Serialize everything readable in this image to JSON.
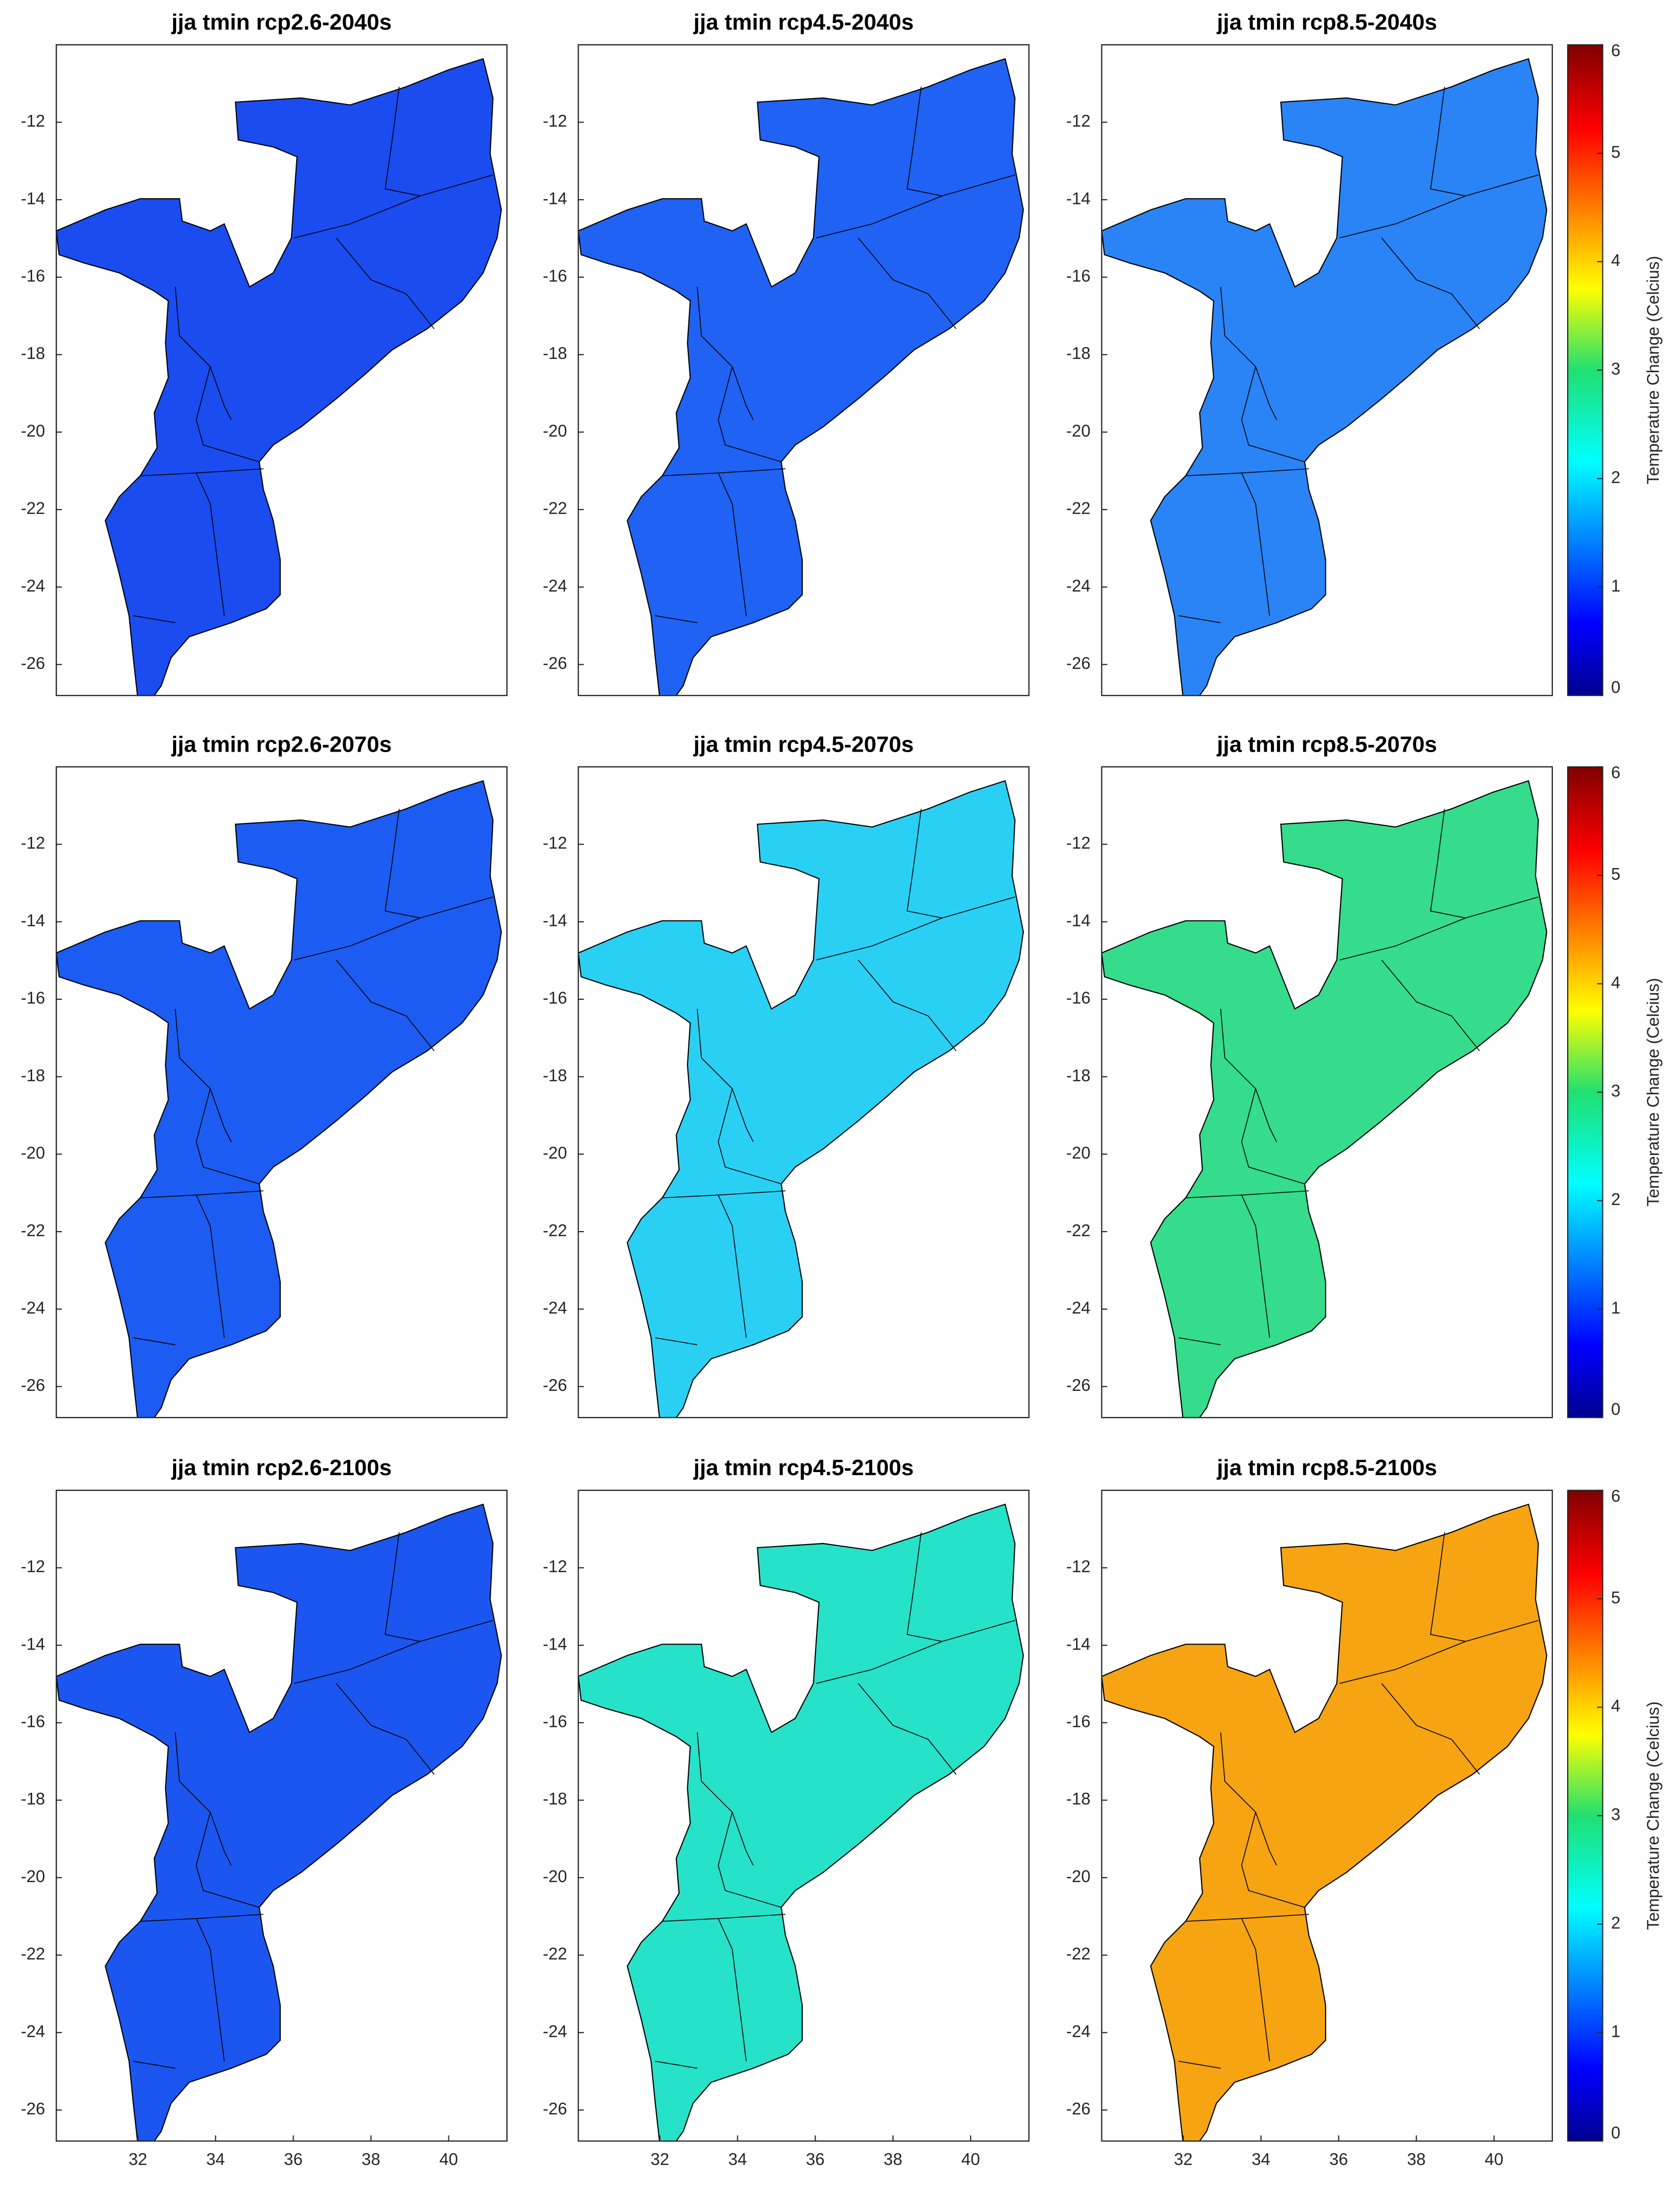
{
  "panels": [
    {
      "title": "jja tmin rcp2.6-2040s",
      "color": "#1a4cf0"
    },
    {
      "title": "jja tmin rcp4.5-2040s",
      "color": "#1f62f4"
    },
    {
      "title": "jja tmin rcp8.5-2040s",
      "color": "#2a84f6"
    },
    {
      "title": "jja tmin rcp2.6-2070s",
      "color": "#1c5cf2"
    },
    {
      "title": "jja tmin rcp4.5-2070s",
      "color": "#2ad0f4"
    },
    {
      "title": "jja tmin rcp8.5-2070s",
      "color": "#34dc8c"
    },
    {
      "title": "jja tmin rcp2.6-2100s",
      "color": "#1c56f0"
    },
    {
      "title": "jja tmin rcp4.5-2100s",
      "color": "#26e2c8"
    },
    {
      "title": "jja tmin rcp8.5-2100s",
      "color": "#f6a412"
    }
  ],
  "ylim": [
    -26.8,
    -10
  ],
  "yticks": [
    -12,
    -14,
    -16,
    -18,
    -20,
    -22,
    -24,
    -26
  ],
  "xlim": [
    29.9,
    41.5
  ],
  "xticks": [
    32,
    34,
    36,
    38,
    40
  ],
  "colorbar": {
    "label": "Temperature Change (Celcius)",
    "lim": [
      0,
      6
    ],
    "ticks": [
      0,
      1,
      2,
      3,
      4,
      5,
      6
    ]
  }
}
